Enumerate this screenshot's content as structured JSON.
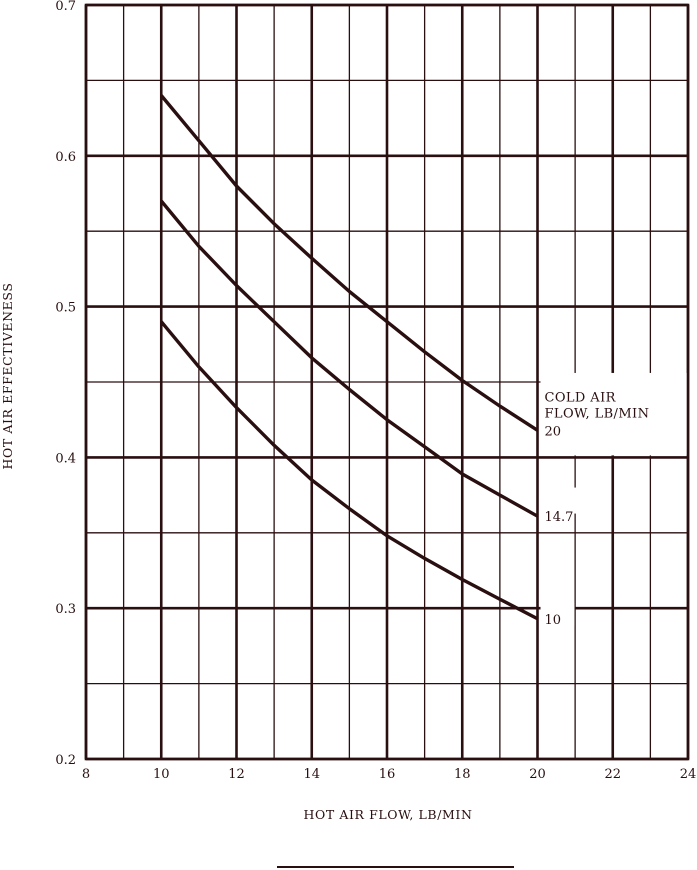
{
  "colors": {
    "ink": "#2a0f10",
    "background": "#ffffff"
  },
  "chart_data": {
    "type": "line",
    "xlabel": "HOT AIR FLOW, LB/MIN",
    "ylabel": "HOT AIR EFFECTIVENESS",
    "xlim": [
      8,
      24
    ],
    "ylim": [
      0.2,
      0.7
    ],
    "x_ticks": [
      "8",
      "10",
      "12",
      "14",
      "16",
      "18",
      "20",
      "22",
      "24"
    ],
    "y_ticks": [
      "0.2",
      "0.3",
      "0.4",
      "0.5",
      "0.6",
      "0.7"
    ],
    "grid": true,
    "legend_title_lines": [
      "COLD AIR",
      "FLOW, LB/MIN"
    ],
    "series": [
      {
        "name": "20",
        "x": [
          10,
          11,
          12,
          13,
          14,
          15,
          16,
          17,
          18,
          19,
          20
        ],
        "y": [
          0.64,
          0.61,
          0.58,
          0.555,
          0.532,
          0.51,
          0.49,
          0.47,
          0.451,
          0.434,
          0.418
        ]
      },
      {
        "name": "14.7",
        "x": [
          10,
          11,
          12,
          13,
          14,
          15,
          16,
          17,
          18,
          19,
          20
        ],
        "y": [
          0.57,
          0.54,
          0.514,
          0.49,
          0.466,
          0.445,
          0.425,
          0.407,
          0.389,
          0.375,
          0.361
        ]
      },
      {
        "name": "10",
        "x": [
          10,
          11,
          12,
          13,
          14,
          15,
          16,
          17,
          18,
          19,
          20
        ],
        "y": [
          0.49,
          0.46,
          0.433,
          0.408,
          0.385,
          0.366,
          0.348,
          0.333,
          0.319,
          0.306,
          0.293
        ]
      }
    ]
  }
}
